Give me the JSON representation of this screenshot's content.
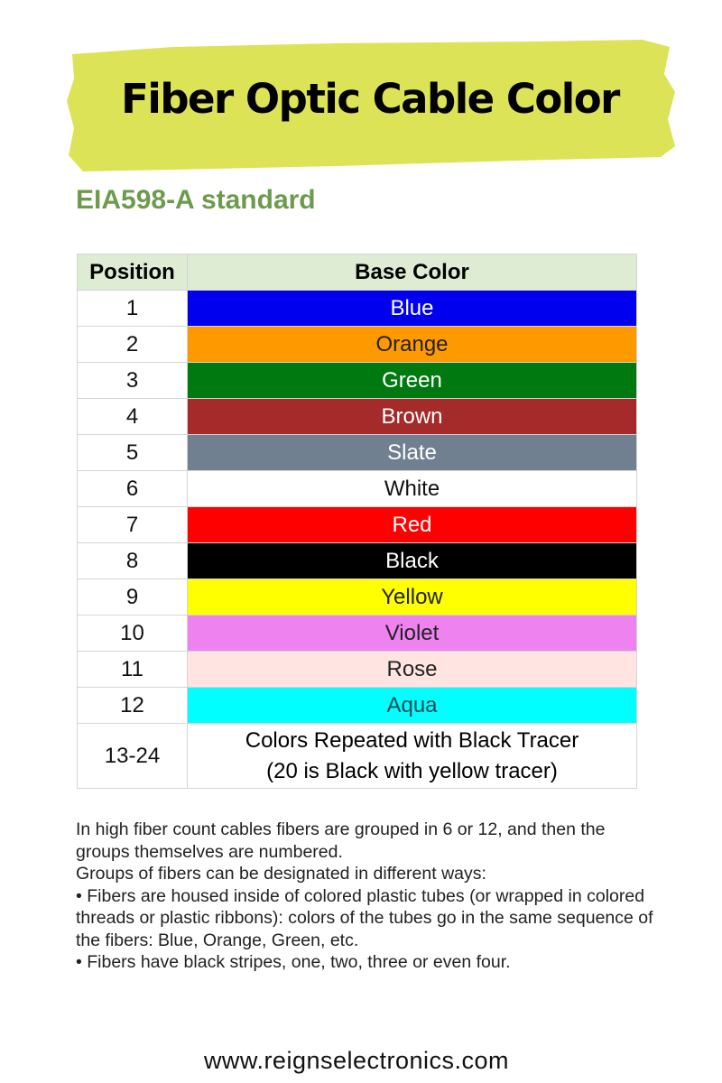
{
  "header": {
    "title": "Fiber Optic Cable Color",
    "subtitle": "EIA598-A standard",
    "banner_color": "#dde356"
  },
  "table": {
    "headers": [
      "Position",
      "Base Color"
    ],
    "rows": [
      {
        "position": "1",
        "color": "Blue",
        "bg": "#0000ee",
        "fg": "#ffffff"
      },
      {
        "position": "2",
        "color": "Orange",
        "bg": "#ff9900",
        "fg": "#222222"
      },
      {
        "position": "3",
        "color": "Green",
        "bg": "#007a10",
        "fg": "#ffffff"
      },
      {
        "position": "4",
        "color": "Brown",
        "bg": "#a52a2a",
        "fg": "#ffffff"
      },
      {
        "position": "5",
        "color": "Slate",
        "bg": "#708090",
        "fg": "#ffffff"
      },
      {
        "position": "6",
        "color": "White",
        "bg": "#ffffff",
        "fg": "#111111"
      },
      {
        "position": "7",
        "color": "Red",
        "bg": "#ff0000",
        "fg": "#ffffff"
      },
      {
        "position": "8",
        "color": "Black",
        "bg": "#000000",
        "fg": "#ffffff"
      },
      {
        "position": "9",
        "color": "Yellow",
        "bg": "#ffff00",
        "fg": "#222222"
      },
      {
        "position": "10",
        "color": "Violet",
        "bg": "#ee82ee",
        "fg": "#222222"
      },
      {
        "position": "11",
        "color": "Rose",
        "bg": "#ffe4e1",
        "fg": "#222222"
      },
      {
        "position": "12",
        "color": "Aqua",
        "bg": "#00ffff",
        "fg": "#1a4a55"
      }
    ],
    "last_row": {
      "position": "13-24",
      "line1": "Colors Repeated with Black Tracer",
      "line2": "(20 is Black with yellow tracer)"
    }
  },
  "body": {
    "lines": [
      "In high fiber count cables fibers are grouped in 6 or 12, and then the groups themselves are numbered.",
      "Groups of fibers can be designated in different ways:",
      "• Fibers are housed inside of colored plastic tubes (or wrapped in colored threads or plastic ribbons): colors of the tubes go in the same sequence of the fibers: Blue, Orange, Green, etc.",
      "• Fibers have black stripes, one, two, three or even four."
    ]
  },
  "footer": {
    "website": "www.reignselectronics.com"
  }
}
